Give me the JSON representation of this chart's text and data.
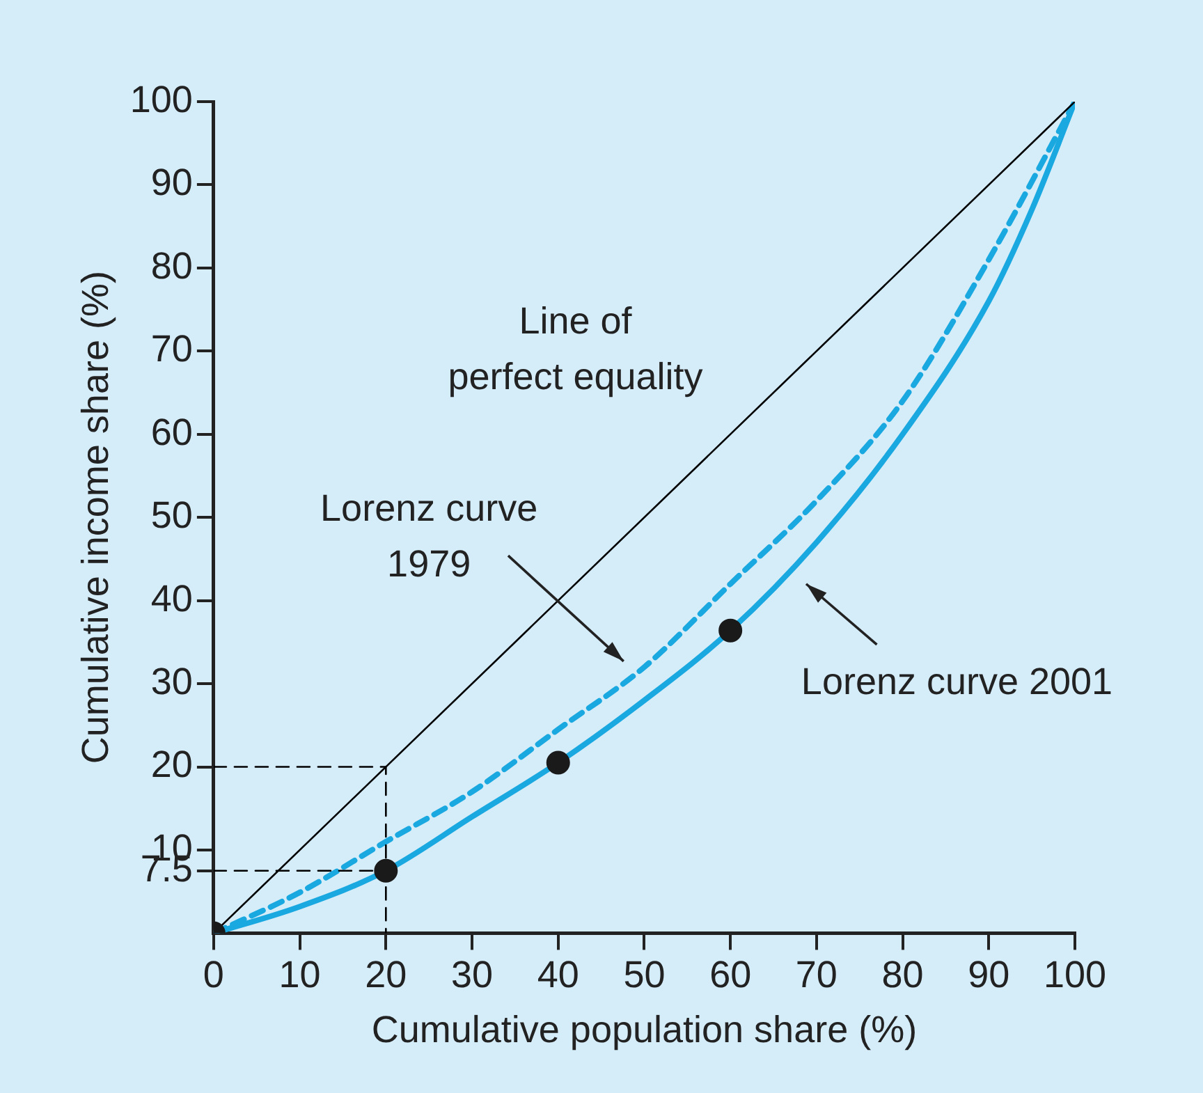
{
  "chart_data": {
    "type": "line",
    "xlabel": "Cumulative population share (%)",
    "ylabel": "Cumulative income share (%)",
    "xlim": [
      0,
      100
    ],
    "ylim": [
      0,
      100
    ],
    "xticks": [
      0,
      10,
      20,
      30,
      40,
      50,
      60,
      70,
      80,
      90,
      100
    ],
    "yticks": [
      7.5,
      10,
      20,
      30,
      40,
      50,
      60,
      70,
      80,
      90,
      100
    ],
    "grid": false,
    "legend": false,
    "marker": "none",
    "series": [
      {
        "type": "line",
        "color": "#000000",
        "x": [
          0,
          100
        ],
        "values": [
          0,
          100
        ],
        "line_style": "solid"
      },
      {
        "type": "line",
        "color": "#000000",
        "x": [
          0,
          20,
          20
        ],
        "values": [
          20,
          20,
          0
        ],
        "line_style": "dashed"
      },
      {
        "type": "line",
        "color": "#000000",
        "x": [
          0,
          20
        ],
        "values": [
          7.5,
          7.5
        ],
        "line_style": "dashed"
      },
      {
        "type": "line",
        "color": "#1aa8e0",
        "x": [
          0,
          10,
          20,
          30,
          40,
          50,
          60,
          70,
          80,
          90,
          100
        ],
        "values": [
          0,
          4.9,
          11,
          17,
          24.5,
          32,
          42,
          52,
          64,
          81,
          100
        ],
        "line_style": "dashed"
      },
      {
        "type": "line",
        "color": "#1aa8e0",
        "x": [
          0,
          10,
          20,
          30,
          40,
          50,
          60,
          70,
          80,
          90,
          95,
          100
        ],
        "values": [
          0,
          3.2,
          7.5,
          14,
          20.5,
          28,
          36.4,
          47,
          60,
          76,
          87,
          100
        ],
        "line_style": "solid"
      },
      {
        "type": "scatter",
        "color": "#1a1a1a",
        "marker": "circle",
        "x": [
          0,
          20,
          40,
          60
        ],
        "values": [
          0,
          7.5,
          20.5,
          36.4
        ]
      }
    ],
    "annotations": [
      "Line of\nperfect equality",
      "Lorenz curve\n1979",
      "Lorenz curve 2001"
    ]
  }
}
